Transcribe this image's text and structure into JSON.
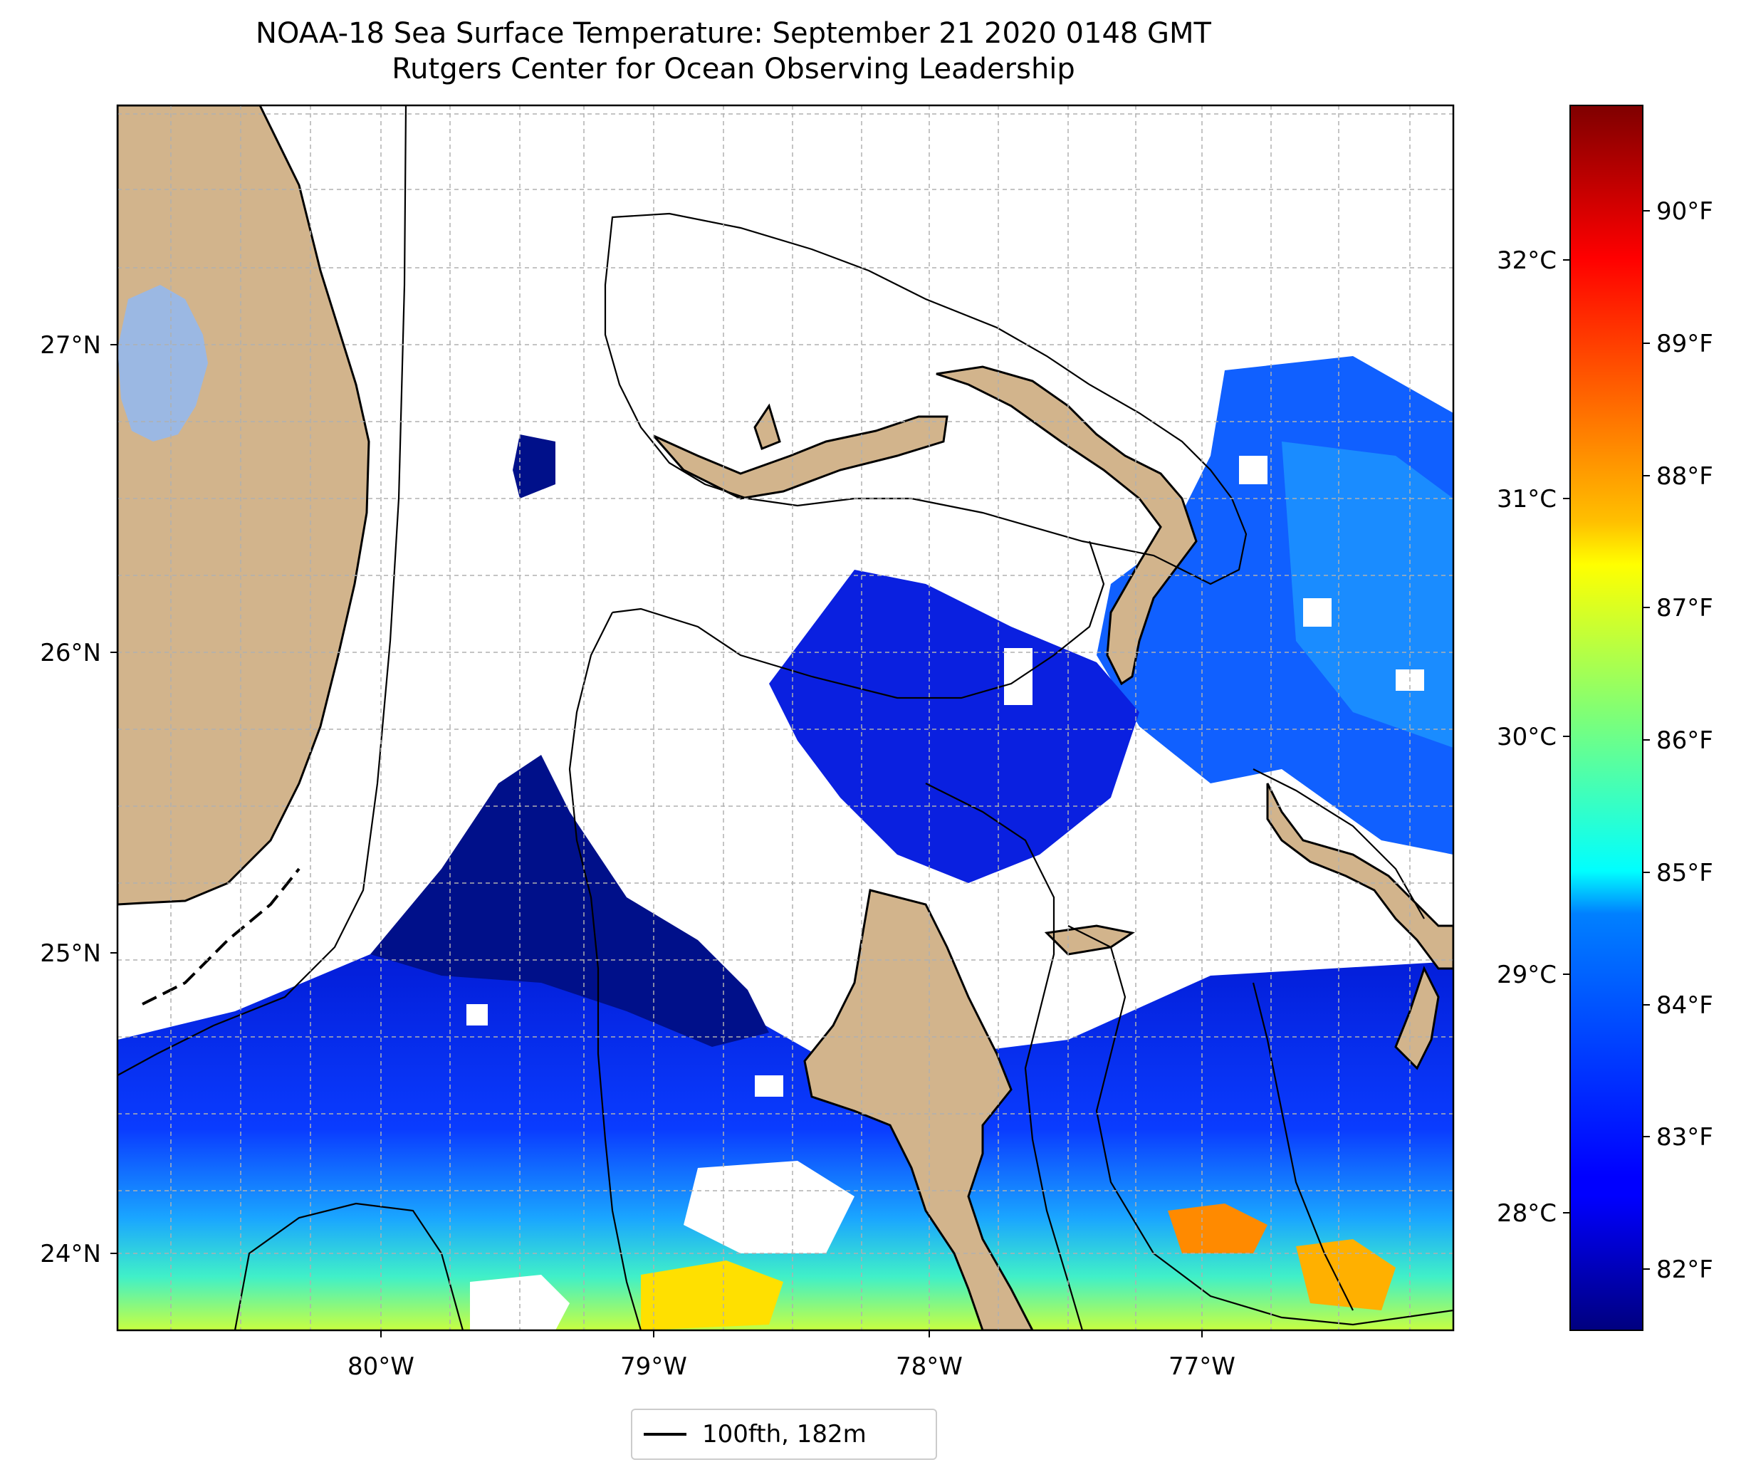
{
  "title": {
    "line1": "NOAA-18 Sea Surface Temperature: September 21 2020 0148 GMT",
    "line2": "Rutgers Center for Ocean Observing Leadership"
  },
  "map": {
    "lon_ticks": [
      "80°W",
      "79°W",
      "78°W",
      "77°W"
    ],
    "lat_ticks": [
      "27°N",
      "26°N",
      "25°N",
      "24°N"
    ],
    "land_color": "#d2b48c",
    "lake_color": "#9bb8e3",
    "no_data_color": "#ffffff"
  },
  "colorbar": {
    "colormap": "jet",
    "celsius_ticks": [
      "32°C",
      "31°C",
      "30°C",
      "29°C",
      "28°C"
    ],
    "fahrenheit_ticks": [
      "90°F",
      "89°F",
      "88°F",
      "87°F",
      "86°F",
      "85°F",
      "84°F",
      "83°F",
      "82°F"
    ]
  },
  "legend": {
    "label": "100fth, 182m",
    "line_color": "#000000"
  }
}
